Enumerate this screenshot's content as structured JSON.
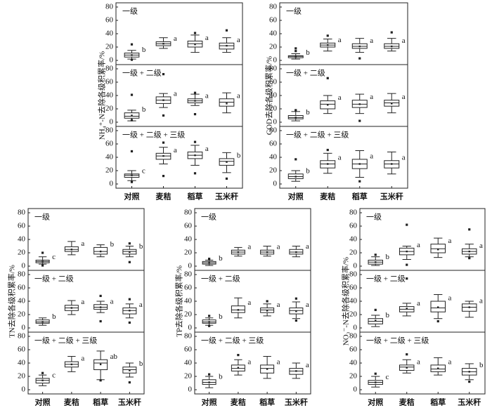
{
  "chart_data": [
    {
      "type": "box",
      "ylabel": "NH₄⁺-N去除各级积累率/%",
      "categories": [
        "对照",
        "麦秸",
        "稻草",
        "玉米秆"
      ],
      "ylim": [
        0,
        80
      ],
      "yticks": [
        0,
        20,
        40,
        60,
        80
      ],
      "subplots": [
        {
          "label": "一级",
          "boxes": [
            {
              "low": 2,
              "q1": 5,
              "median": 8,
              "q3": 11,
              "high": 15,
              "mean": 8,
              "letter": "b",
              "outliers": [
                24,
                1
              ]
            },
            {
              "low": 18,
              "q1": 22,
              "median": 25,
              "q3": 28,
              "high": 34,
              "mean": 25,
              "letter": "a",
              "outliers": []
            },
            {
              "low": 12,
              "q1": 20,
              "median": 25,
              "q3": 29,
              "high": 38,
              "mean": 24,
              "letter": "a",
              "outliers": [
                41
              ]
            },
            {
              "low": 12,
              "q1": 17,
              "median": 22,
              "q3": 26,
              "high": 34,
              "mean": 22,
              "letter": "a",
              "outliers": [
                45
              ]
            }
          ]
        },
        {
          "label": "一级 + 二级",
          "boxes": [
            {
              "low": 2,
              "q1": 6,
              "median": 9,
              "q3": 14,
              "high": 18,
              "mean": 10,
              "letter": "b",
              "outliers": [
                41,
                3
              ]
            },
            {
              "low": 22,
              "q1": 28,
              "median": 33,
              "q3": 38,
              "high": 43,
              "mean": 33,
              "letter": "a",
              "outliers": [
                72,
                10
              ]
            },
            {
              "low": 25,
              "q1": 29,
              "median": 32,
              "q3": 35,
              "high": 42,
              "mean": 32,
              "letter": "a",
              "outliers": [
                44,
                12
              ]
            },
            {
              "low": 14,
              "q1": 24,
              "median": 30,
              "q3": 35,
              "high": 44,
              "mean": 28,
              "letter": "a",
              "outliers": []
            }
          ]
        },
        {
          "label": "一级 + 二级 + 三级",
          "boxes": [
            {
              "low": 5,
              "q1": 10,
              "median": 13,
              "q3": 15,
              "high": 20,
              "mean": 13,
              "letter": "c",
              "outliers": [
                49,
                3
              ]
            },
            {
              "low": 30,
              "q1": 37,
              "median": 42,
              "q3": 46,
              "high": 55,
              "mean": 42,
              "letter": "a",
              "outliers": [
                62,
                12
              ]
            },
            {
              "low": 28,
              "q1": 38,
              "median": 43,
              "q3": 48,
              "high": 58,
              "mean": 43,
              "letter": "a",
              "outliers": [
                63,
                16
              ]
            },
            {
              "low": 17,
              "q1": 28,
              "median": 34,
              "q3": 38,
              "high": 47,
              "mean": 33,
              "letter": "b",
              "outliers": [
                8
              ]
            }
          ]
        }
      ]
    },
    {
      "type": "box",
      "ylabel": "COD去除各级积累率/%",
      "categories": [
        "对照",
        "麦秸",
        "稻草",
        "玉米秆"
      ],
      "ylim": [
        0,
        80
      ],
      "yticks": [
        0,
        20,
        40,
        60,
        80
      ],
      "subplots": [
        {
          "label": "一级",
          "boxes": [
            {
              "low": 2,
              "q1": 4,
              "median": 6,
              "q3": 7,
              "high": 10,
              "mean": 6,
              "letter": "b",
              "outliers": [
                18,
                14
              ]
            },
            {
              "low": 14,
              "q1": 20,
              "median": 23,
              "q3": 26,
              "high": 32,
              "mean": 23,
              "letter": "a",
              "outliers": [
                37
              ]
            },
            {
              "low": 12,
              "q1": 18,
              "median": 21,
              "q3": 25,
              "high": 33,
              "mean": 21,
              "letter": "a",
              "outliers": [
                3
              ]
            },
            {
              "low": 14,
              "q1": 18,
              "median": 21,
              "q3": 25,
              "high": 33,
              "mean": 21,
              "letter": "a",
              "outliers": [
                42
              ]
            }
          ]
        },
        {
          "label": "一级 + 二级",
          "boxes": [
            {
              "low": 2,
              "q1": 5,
              "median": 7,
              "q3": 10,
              "high": 16,
              "mean": 7,
              "letter": "b",
              "outliers": [
                18
              ]
            },
            {
              "low": 13,
              "q1": 20,
              "median": 27,
              "q3": 32,
              "high": 40,
              "mean": 26,
              "letter": "a",
              "outliers": [
                66
              ]
            },
            {
              "low": 13,
              "q1": 22,
              "median": 27,
              "q3": 33,
              "high": 42,
              "mean": 27,
              "letter": "a",
              "outliers": [
                2
              ]
            },
            {
              "low": 14,
              "q1": 24,
              "median": 29,
              "q3": 33,
              "high": 43,
              "mean": 28,
              "letter": "a",
              "outliers": []
            }
          ]
        },
        {
          "label": "一级 + 二级 + 三级",
          "boxes": [
            {
              "low": 4,
              "q1": 8,
              "median": 11,
              "q3": 15,
              "high": 20,
              "mean": 11,
              "letter": "b",
              "outliers": [
                37
              ]
            },
            {
              "low": 16,
              "q1": 24,
              "median": 30,
              "q3": 35,
              "high": 46,
              "mean": 30,
              "letter": "a",
              "outliers": [
                51
              ]
            },
            {
              "low": 10,
              "q1": 23,
              "median": 30,
              "q3": 37,
              "high": 50,
              "mean": 30,
              "letter": "a",
              "outliers": [
                4
              ]
            },
            {
              "low": 15,
              "q1": 24,
              "median": 30,
              "q3": 35,
              "high": 48,
              "mean": 30,
              "letter": "a",
              "outliers": []
            }
          ]
        }
      ]
    },
    {
      "type": "box",
      "ylabel": "TN去除各级积累率/%",
      "categories": [
        "对照",
        "麦秸",
        "稻草",
        "玉米秆"
      ],
      "ylim": [
        0,
        80
      ],
      "yticks": [
        0,
        20,
        40,
        60,
        80
      ],
      "subplots": [
        {
          "label": "一级",
          "boxes": [
            {
              "low": 3,
              "q1": 5,
              "median": 7,
              "q3": 9,
              "high": 14,
              "mean": 7,
              "letter": "c",
              "outliers": [
                20,
                1
              ]
            },
            {
              "low": 17,
              "q1": 22,
              "median": 25,
              "q3": 29,
              "high": 37,
              "mean": 25,
              "letter": "a",
              "outliers": []
            },
            {
              "low": 14,
              "q1": 18,
              "median": 22,
              "q3": 28,
              "high": 32,
              "mean": 22,
              "letter": "b",
              "outliers": []
            },
            {
              "low": 14,
              "q1": 18,
              "median": 22,
              "q3": 25,
              "high": 30,
              "mean": 21,
              "letter": "b",
              "outliers": [
                34,
                6
              ]
            }
          ]
        },
        {
          "label": "一级 + 二级",
          "boxes": [
            {
              "low": 4,
              "q1": 7,
              "median": 9,
              "q3": 12,
              "high": 15,
              "mean": 9,
              "letter": "b",
              "outliers": []
            },
            {
              "low": 20,
              "q1": 26,
              "median": 30,
              "q3": 34,
              "high": 41,
              "mean": 30,
              "letter": "a",
              "outliers": []
            },
            {
              "low": 23,
              "q1": 28,
              "median": 31,
              "q3": 35,
              "high": 40,
              "mean": 31,
              "letter": "a",
              "outliers": [
                48,
                10
              ]
            },
            {
              "low": 15,
              "q1": 21,
              "median": 26,
              "q3": 30,
              "high": 36,
              "mean": 26,
              "letter": "a",
              "outliers": [
                43,
                8
              ]
            }
          ]
        },
        {
          "label": "一级 + 二级 + 三级",
          "boxes": [
            {
              "low": 6,
              "q1": 10,
              "median": 14,
              "q3": 17,
              "high": 22,
              "mean": 14,
              "letter": "c",
              "outliers": [
                25
              ]
            },
            {
              "low": 27,
              "q1": 34,
              "median": 38,
              "q3": 42,
              "high": 50,
              "mean": 38,
              "letter": "a",
              "outliers": []
            },
            {
              "low": 15,
              "q1": 30,
              "median": 40,
              "q3": 45,
              "high": 58,
              "mean": 38,
              "letter": "ab",
              "outliers": [
                14
              ]
            },
            {
              "low": 19,
              "q1": 25,
              "median": 30,
              "q3": 34,
              "high": 40,
              "mean": 29,
              "letter": "b",
              "outliers": [
                11
              ]
            }
          ]
        }
      ]
    },
    {
      "type": "box",
      "ylabel": "TP去除各级积累率/%",
      "categories": [
        "对照",
        "麦秸",
        "稻草",
        "玉米秆"
      ],
      "ylim": [
        0,
        80
      ],
      "yticks": [
        0,
        20,
        40,
        60,
        80
      ],
      "subplots": [
        {
          "label": "一级",
          "boxes": [
            {
              "low": 1,
              "q1": 3,
              "median": 5,
              "q3": 7,
              "high": 9,
              "mean": 5,
              "letter": "b",
              "outliers": [
                11
              ]
            },
            {
              "low": 15,
              "q1": 18,
              "median": 21,
              "q3": 24,
              "high": 28,
              "mean": 21,
              "letter": "a",
              "outliers": []
            },
            {
              "low": 15,
              "q1": 18,
              "median": 21,
              "q3": 24,
              "high": 30,
              "mean": 21,
              "letter": "a",
              "outliers": []
            },
            {
              "low": 14,
              "q1": 18,
              "median": 21,
              "q3": 25,
              "high": 30,
              "mean": 21,
              "letter": "a",
              "outliers": []
            }
          ]
        },
        {
          "label": "一级 + 二级",
          "boxes": [
            {
              "low": 4,
              "q1": 7,
              "median": 9,
              "q3": 12,
              "high": 15,
              "mean": 9,
              "letter": "b",
              "outliers": [
                18,
                3
              ]
            },
            {
              "low": 15,
              "q1": 23,
              "median": 27,
              "q3": 33,
              "high": 45,
              "mean": 27,
              "letter": "a",
              "outliers": []
            },
            {
              "low": 18,
              "q1": 23,
              "median": 27,
              "q3": 30,
              "high": 36,
              "mean": 26,
              "letter": "a",
              "outliers": [
                40
              ]
            },
            {
              "low": 14,
              "q1": 21,
              "median": 26,
              "q3": 30,
              "high": 39,
              "mean": 25,
              "letter": "a",
              "outliers": [
                44,
                11
              ]
            }
          ]
        },
        {
          "label": "一级 + 二级 + 三级",
          "boxes": [
            {
              "low": 3,
              "q1": 8,
              "median": 11,
              "q3": 15,
              "high": 20,
              "mean": 11,
              "letter": "b",
              "outliers": [
                23
              ]
            },
            {
              "low": 22,
              "q1": 28,
              "median": 32,
              "q3": 37,
              "high": 45,
              "mean": 33,
              "letter": "a",
              "outliers": [
                52
              ]
            },
            {
              "low": 17,
              "q1": 25,
              "median": 32,
              "q3": 37,
              "high": 50,
              "mean": 31,
              "letter": "a",
              "outliers": []
            },
            {
              "low": 17,
              "q1": 23,
              "median": 28,
              "q3": 32,
              "high": 40,
              "mean": 28,
              "letter": "a",
              "outliers": []
            }
          ]
        }
      ]
    },
    {
      "type": "box",
      "ylabel": "NO₃⁻-N去除各级积累率/%",
      "categories": [
        "对照",
        "麦秸",
        "稻草",
        "玉米秆"
      ],
      "ylim": [
        0,
        80
      ],
      "yticks": [
        0,
        20,
        40,
        60,
        80
      ],
      "subplots": [
        {
          "label": "一级",
          "boxes": [
            {
              "low": 1,
              "q1": 3,
              "median": 6,
              "q3": 9,
              "high": 14,
              "mean": 6,
              "letter": "b",
              "outliers": [
                17
              ]
            },
            {
              "low": 10,
              "q1": 17,
              "median": 22,
              "q3": 27,
              "high": 30,
              "mean": 22,
              "letter": "a",
              "outliers": [
                62,
                2
              ]
            },
            {
              "low": 13,
              "q1": 20,
              "median": 26,
              "q3": 33,
              "high": 42,
              "mean": 25,
              "letter": "a",
              "outliers": []
            },
            {
              "low": 14,
              "q1": 18,
              "median": 22,
              "q3": 26,
              "high": 33,
              "mean": 22,
              "letter": "a",
              "outliers": [
                55,
                12
              ]
            }
          ]
        },
        {
          "label": "一级 + 二级",
          "boxes": [
            {
              "low": 2,
              "q1": 6,
              "median": 10,
              "q3": 14,
              "high": 19,
              "mean": 11,
              "letter": "b",
              "outliers": [
                27
              ]
            },
            {
              "low": 18,
              "q1": 24,
              "median": 28,
              "q3": 32,
              "high": 37,
              "mean": 29,
              "letter": "a",
              "outliers": [
                74
              ]
            },
            {
              "low": 14,
              "q1": 24,
              "median": 30,
              "q3": 40,
              "high": 50,
              "mean": 31,
              "letter": "a",
              "outliers": [
                10
              ]
            },
            {
              "low": 16,
              "q1": 25,
              "median": 31,
              "q3": 36,
              "high": 40,
              "mean": 31,
              "letter": "a",
              "outliers": []
            }
          ]
        },
        {
          "label": "一级 + 二级 + 三级",
          "boxes": [
            {
              "low": 4,
              "q1": 8,
              "median": 11,
              "q3": 14,
              "high": 20,
              "mean": 11,
              "letter": "c",
              "outliers": [
                24
              ]
            },
            {
              "low": 25,
              "q1": 29,
              "median": 34,
              "q3": 37,
              "high": 45,
              "mean": 33,
              "letter": "a",
              "outliers": [
                53
              ]
            },
            {
              "low": 22,
              "q1": 27,
              "median": 31,
              "q3": 37,
              "high": 48,
              "mean": 32,
              "letter": "a",
              "outliers": []
            },
            {
              "low": 15,
              "q1": 22,
              "median": 27,
              "q3": 32,
              "high": 39,
              "mean": 27,
              "letter": "b",
              "outliers": [
                12
              ]
            }
          ]
        }
      ]
    }
  ]
}
